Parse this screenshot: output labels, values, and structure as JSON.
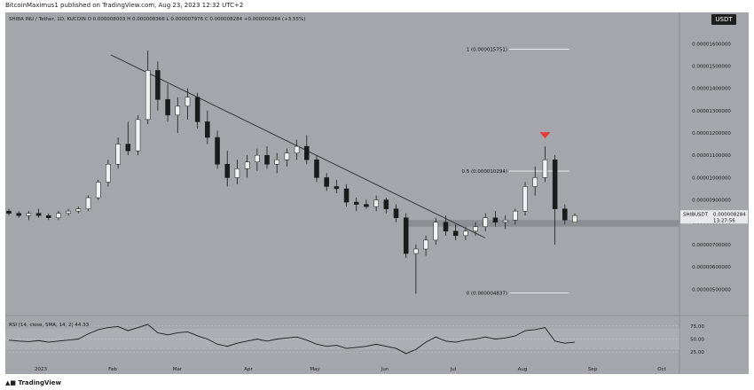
{
  "header": {
    "publisher_line": "BitcoinMaximus1 published on TradingView.com, Aug 23, 2023 12:32 UTC+2"
  },
  "footer": {
    "brand": "TradingView"
  },
  "chart_data": {
    "type": "candlestick",
    "symbol_line": "SHIBA INU / Tether, 1D, KUCOIN  O 0.000008003  H 0.000008366  L 0.000007976  C 0.000008284  +0.000000284 (+3.55%)",
    "currency": "USDT",
    "price_tag": {
      "label": "SHIBUSDT",
      "value": "0.000008284",
      "countdown": "13:27:56"
    },
    "y_ticks": [
      "0.00001600000",
      "0.00001500000",
      "0.00001400000",
      "0.00001300000",
      "0.00001200000",
      "0.00001100000",
      "0.00001000000",
      "0.00000900000",
      "0.00000800000",
      "0.00000700000",
      "0.00000600000",
      "0.00000500000"
    ],
    "y_tick_values": [
      1.6e-05,
      1.5e-05,
      1.4e-05,
      1.3e-05,
      1.2e-05,
      1.1e-05,
      1e-05,
      9e-06,
      8e-06,
      7e-06,
      6e-06,
      5e-06
    ],
    "ylim": [
      3.9e-06,
      1.74e-05
    ],
    "x_ticks": [
      "2023",
      "Feb",
      "Mar",
      "Apr",
      "May",
      "Jun",
      "Jul",
      "Aug",
      "Sep",
      "Oct"
    ],
    "fib_levels": [
      {
        "label": "1 (0.000015751)",
        "value": 1.5751e-05
      },
      {
        "label": "0.5 (0.000010294)",
        "value": 1.0294e-05
      },
      {
        "label": "0 (0.000004837)",
        "value": 4.837e-06
      }
    ],
    "support_zone": [
      7.8e-06,
      8.1e-06
    ],
    "trendline": {
      "start": 1.55e-05,
      "end": 7.3e-06
    },
    "markers": [
      {
        "type": "arrow-down",
        "color": "#e53935"
      }
    ],
    "candles": [
      [
        8.5e-06,
        8.6e-06,
        8.3e-06,
        8.4e-06
      ],
      [
        8.4e-06,
        8.5e-06,
        8.2e-06,
        8.3e-06
      ],
      [
        8.3e-06,
        8.5e-06,
        8.1e-06,
        8.4e-06
      ],
      [
        8.4e-06,
        8.6e-06,
        8.2e-06,
        8.3e-06
      ],
      [
        8.3e-06,
        8.4e-06,
        8.1e-06,
        8.2e-06
      ],
      [
        8.2e-06,
        8.5e-06,
        8.1e-06,
        8.4e-06
      ],
      [
        8.4e-06,
        8.6e-06,
        8.3e-06,
        8.5e-06
      ],
      [
        8.5e-06,
        8.7e-06,
        8.4e-06,
        8.6e-06
      ],
      [
        8.6e-06,
        9.2e-06,
        8.5e-06,
        9.1e-06
      ],
      [
        9.1e-06,
        9.9e-06,
        9e-06,
        9.8e-06
      ],
      [
        9.8e-06,
        1.08e-05,
        9.6e-06,
        1.06e-05
      ],
      [
        1.06e-05,
        1.18e-05,
        1.04e-05,
        1.15e-05
      ],
      [
        1.15e-05,
        1.25e-05,
        1.1e-05,
        1.12e-05
      ],
      [
        1.12e-05,
        1.28e-05,
        1.1e-05,
        1.26e-05
      ],
      [
        1.26e-05,
        1.57e-05,
        1.24e-05,
        1.48e-05
      ],
      [
        1.48e-05,
        1.52e-05,
        1.3e-05,
        1.35e-05
      ],
      [
        1.35e-05,
        1.42e-05,
        1.25e-05,
        1.28e-05
      ],
      [
        1.28e-05,
        1.36e-05,
        1.2e-05,
        1.32e-05
      ],
      [
        1.32e-05,
        1.4e-05,
        1.26e-05,
        1.36e-05
      ],
      [
        1.36e-05,
        1.38e-05,
        1.22e-05,
        1.25e-05
      ],
      [
        1.25e-05,
        1.3e-05,
        1.15e-05,
        1.18e-05
      ],
      [
        1.18e-05,
        1.21e-05,
        1.04e-05,
        1.06e-05
      ],
      [
        1.06e-05,
        1.12e-05,
        9.6e-06,
        1e-05
      ],
      [
        1e-05,
        1.08e-05,
        9.7e-06,
        1.04e-05
      ],
      [
        1.04e-05,
        1.1e-05,
        1e-05,
        1.07e-05
      ],
      [
        1.07e-05,
        1.13e-05,
        1.03e-05,
        1.1e-05
      ],
      [
        1.1e-05,
        1.14e-05,
        1.04e-05,
        1.06e-05
      ],
      [
        1.06e-05,
        1.11e-05,
        1.02e-05,
        1.08e-05
      ],
      [
        1.08e-05,
        1.13e-05,
        1.05e-05,
        1.11e-05
      ],
      [
        1.11e-05,
        1.17e-05,
        1.08e-05,
        1.14e-05
      ],
      [
        1.14e-05,
        1.19e-05,
        1.06e-05,
        1.08e-05
      ],
      [
        1.08e-05,
        1.1e-05,
        9.8e-06,
        1e-05
      ],
      [
        1e-05,
        1.02e-05,
        9.4e-06,
        9.6e-06
      ],
      [
        9.6e-06,
        9.9e-06,
        9.3e-06,
        9.5e-06
      ],
      [
        9.5e-06,
        9.7e-06,
        8.7e-06,
        8.9e-06
      ],
      [
        8.9e-06,
        9.1e-06,
        8.5e-06,
        8.8e-06
      ],
      [
        8.8e-06,
        9e-06,
        8.6e-06,
        8.7e-06
      ],
      [
        8.7e-06,
        9.2e-06,
        8.5e-06,
        9e-06
      ],
      [
        9e-06,
        9.1e-06,
        8.4e-06,
        8.6e-06
      ],
      [
        8.6e-06,
        8.8e-06,
        8e-06,
        8.2e-06
      ],
      [
        8.2e-06,
        8.4e-06,
        6.4e-06,
        6.6e-06
      ],
      [
        6.6e-06,
        7e-06,
        4.8e-06,
        6.8e-06
      ],
      [
        6.8e-06,
        7.4e-06,
        6.5e-06,
        7.2e-06
      ],
      [
        7.2e-06,
        8.2e-06,
        7e-06,
        8e-06
      ],
      [
        8e-06,
        8.3e-06,
        7.4e-06,
        7.6e-06
      ],
      [
        7.6e-06,
        7.9e-06,
        7.2e-06,
        7.4e-06
      ],
      [
        7.4e-06,
        7.8e-06,
        7.2e-06,
        7.6e-06
      ],
      [
        7.6e-06,
        8e-06,
        7.4e-06,
        7.8e-06
      ],
      [
        7.8e-06,
        8.4e-06,
        7.6e-06,
        8.2e-06
      ],
      [
        8.2e-06,
        8.5e-06,
        7.8e-06,
        8e-06
      ],
      [
        8e-06,
        8.3e-06,
        7.7e-06,
        8.1e-06
      ],
      [
        8.1e-06,
        8.6e-06,
        7.9e-06,
        8.5e-06
      ],
      [
        8.5e-06,
        9.8e-06,
        8.3e-06,
        9.6e-06
      ],
      [
        9.6e-06,
        1.05e-05,
        9.2e-06,
        1e-05
      ],
      [
        1e-05,
        1.14e-05,
        9.8e-06,
        1.08e-05
      ],
      [
        1.08e-05,
        1.1e-05,
        7e-06,
        8.6e-06
      ],
      [
        8.6e-06,
        8.8e-06,
        7.9e-06,
        8.1e-06
      ],
      [
        8e-06,
        8.4e-06,
        8e-06,
        8.3e-06
      ]
    ],
    "rsi": {
      "label": "RSI (14, close, SMA, 14, 2)",
      "value_label": "44.33",
      "ticks": [
        "75.00",
        "50.00",
        "25.00"
      ],
      "tick_values": [
        75,
        50,
        25
      ],
      "ylim": [
        10,
        90
      ],
      "values": [
        48,
        46,
        45,
        47,
        44,
        46,
        48,
        50,
        60,
        68,
        72,
        74,
        66,
        72,
        78,
        62,
        58,
        62,
        64,
        56,
        50,
        40,
        36,
        42,
        46,
        50,
        46,
        50,
        52,
        54,
        48,
        40,
        36,
        38,
        32,
        34,
        36,
        40,
        36,
        32,
        22,
        30,
        44,
        54,
        46,
        44,
        48,
        50,
        54,
        50,
        52,
        56,
        66,
        68,
        72,
        46,
        42,
        44
      ]
    }
  }
}
